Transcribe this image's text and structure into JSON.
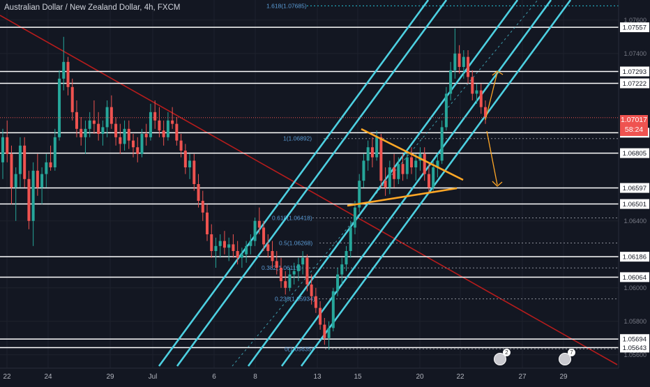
{
  "header": {
    "title": "Australian Dollar / New Zealand Dollar, 4h, FXCM"
  },
  "colors": {
    "background": "#131722",
    "grid": "#1e222d",
    "up": "#26a69a",
    "down": "#ef5350",
    "channel": "#4dd0e1",
    "trendline": "#b71c1c",
    "triangle": "#ffa726",
    "level": "#ffffff"
  },
  "current_price": {
    "value": "1.07017",
    "countdown": "58:24"
  },
  "events": [
    {
      "count": "2"
    },
    {
      "count": "7"
    }
  ],
  "chart_data": {
    "type": "candlestick",
    "symbol": "AUDNZD",
    "timeframe": "4h",
    "ylim": [
      1.0552,
      1.0772
    ],
    "x_tick_labels": [
      "22",
      "24",
      "29",
      "Jul",
      "6",
      "8",
      "13",
      "15",
      "20",
      "22",
      "27",
      "29"
    ],
    "y_tick_labels": [
      "1.07600",
      "1.07400",
      "1.06400",
      "1.06000",
      "1.05800",
      "1.05600"
    ],
    "horizontal_levels": [
      "1.07557",
      "1.07293",
      "1.07222",
      "1.06927",
      "1.06805",
      "1.06597",
      "1.06501",
      "1.06186",
      "1.06064",
      "1.05694",
      "1.05643"
    ],
    "fibonacci_labels": [
      "1.618(1.07685)",
      "1(1.06892)",
      "0.618(1.06418)",
      "0.5(1.06268)",
      "0.382(1.06119)",
      "0.236(1.05934)",
      "0(1.05635)"
    ],
    "candles_ohlc": [
      [
        1.0675,
        1.0695,
        1.0665,
        1.069
      ],
      [
        1.069,
        1.07,
        1.0675,
        1.068
      ],
      [
        1.068,
        1.0685,
        1.065,
        1.066
      ],
      [
        1.066,
        1.0672,
        1.064,
        1.0668
      ],
      [
        1.0668,
        1.069,
        1.066,
        1.0685
      ],
      [
        1.0685,
        1.069,
        1.066,
        1.0665
      ],
      [
        1.0665,
        1.067,
        1.0635,
        1.064
      ],
      [
        1.064,
        1.0675,
        1.0625,
        1.067
      ],
      [
        1.067,
        1.068,
        1.0655,
        1.066
      ],
      [
        1.066,
        1.0672,
        1.065,
        1.0668
      ],
      [
        1.0668,
        1.068,
        1.066,
        1.0675
      ],
      [
        1.0675,
        1.0685,
        1.067,
        1.0672
      ],
      [
        1.0672,
        1.0695,
        1.067,
        1.069
      ],
      [
        1.069,
        1.073,
        1.0688,
        1.0725
      ],
      [
        1.0725,
        1.075,
        1.0718,
        1.0735
      ],
      [
        1.0735,
        1.0738,
        1.0715,
        1.072
      ],
      [
        1.072,
        1.0725,
        1.07,
        1.0705
      ],
      [
        1.0705,
        1.0712,
        1.069,
        1.0695
      ],
      [
        1.0695,
        1.0702,
        1.0685,
        1.069
      ],
      [
        1.069,
        1.07,
        1.068,
        1.0695
      ],
      [
        1.0695,
        1.0705,
        1.069,
        1.07
      ],
      [
        1.07,
        1.0712,
        1.0692,
        1.0698
      ],
      [
        1.0698,
        1.0705,
        1.0688,
        1.0692
      ],
      [
        1.0692,
        1.07,
        1.0685,
        1.0696
      ],
      [
        1.0696,
        1.0712,
        1.069,
        1.0708
      ],
      [
        1.0708,
        1.0715,
        1.0695,
        1.0698
      ],
      [
        1.0698,
        1.0702,
        1.0685,
        1.069
      ],
      [
        1.069,
        1.0698,
        1.068,
        1.0686
      ],
      [
        1.0686,
        1.07,
        1.0682,
        1.0695
      ],
      [
        1.0695,
        1.07,
        1.0683,
        1.0688
      ],
      [
        1.0688,
        1.0692,
        1.0678,
        1.0684
      ],
      [
        1.0684,
        1.069,
        1.0675,
        1.068
      ],
      [
        1.068,
        1.0695,
        1.0678,
        1.0692
      ],
      [
        1.0692,
        1.0698,
        1.0685,
        1.069
      ],
      [
        1.069,
        1.071,
        1.0688,
        1.0705
      ],
      [
        1.0705,
        1.0712,
        1.0695,
        1.07
      ],
      [
        1.07,
        1.0708,
        1.069,
        1.0694
      ],
      [
        1.0694,
        1.07,
        1.0685,
        1.069
      ],
      [
        1.069,
        1.0705,
        1.0688,
        1.07
      ],
      [
        1.07,
        1.0708,
        1.0695,
        1.0698
      ],
      [
        1.0698,
        1.0702,
        1.0685,
        1.0688
      ],
      [
        1.0688,
        1.0692,
        1.0678,
        1.0682
      ],
      [
        1.0682,
        1.0686,
        1.0668,
        1.0672
      ],
      [
        1.0672,
        1.068,
        1.0665,
        1.0676
      ],
      [
        1.0676,
        1.068,
        1.0658,
        1.0662
      ],
      [
        1.0662,
        1.0668,
        1.0648,
        1.0652
      ],
      [
        1.0652,
        1.0658,
        1.064,
        1.0645
      ],
      [
        1.0645,
        1.065,
        1.0628,
        1.0632
      ],
      [
        1.0632,
        1.0638,
        1.0618,
        1.0622
      ],
      [
        1.0622,
        1.063,
        1.0612,
        1.0625
      ],
      [
        1.0625,
        1.0632,
        1.0618,
        1.0628
      ],
      [
        1.0628,
        1.0634,
        1.062,
        1.0624
      ],
      [
        1.0624,
        1.063,
        1.0616,
        1.0626
      ],
      [
        1.0626,
        1.0632,
        1.0618,
        1.0622
      ],
      [
        1.0622,
        1.0628,
        1.0614,
        1.0618
      ],
      [
        1.0618,
        1.0624,
        1.0612,
        1.062
      ],
      [
        1.062,
        1.0628,
        1.0615,
        1.0625
      ],
      [
        1.0625,
        1.0632,
        1.062,
        1.0628
      ],
      [
        1.0628,
        1.0642,
        1.0625,
        1.064
      ],
      [
        1.064,
        1.0648,
        1.0632,
        1.0636
      ],
      [
        1.0636,
        1.064,
        1.0622,
        1.0626
      ],
      [
        1.0626,
        1.0632,
        1.0618,
        1.0622
      ],
      [
        1.0622,
        1.0628,
        1.0612,
        1.0616
      ],
      [
        1.0616,
        1.0622,
        1.0608,
        1.0612
      ],
      [
        1.0612,
        1.0618,
        1.06,
        1.0604
      ],
      [
        1.0604,
        1.061,
        1.0596,
        1.06
      ],
      [
        1.06,
        1.0612,
        1.0598,
        1.0608
      ],
      [
        1.0608,
        1.0615,
        1.0602,
        1.061
      ],
      [
        1.061,
        1.0618,
        1.0604,
        1.0614
      ],
      [
        1.0614,
        1.0622,
        1.0608,
        1.0618
      ],
      [
        1.0618,
        1.062,
        1.0598,
        1.0602
      ],
      [
        1.0602,
        1.0608,
        1.059,
        1.0595
      ],
      [
        1.0595,
        1.06,
        1.0585,
        1.0588
      ],
      [
        1.0588,
        1.0592,
        1.0575,
        1.0578
      ],
      [
        1.0578,
        1.0582,
        1.0566,
        1.057
      ],
      [
        1.057,
        1.058,
        1.0563,
        1.0576
      ],
      [
        1.0576,
        1.06,
        1.0574,
        1.0598
      ],
      [
        1.0598,
        1.0612,
        1.0595,
        1.0608
      ],
      [
        1.0608,
        1.0618,
        1.0602,
        1.0614
      ],
      [
        1.0614,
        1.0625,
        1.061,
        1.0622
      ],
      [
        1.0622,
        1.064,
        1.0618,
        1.0636
      ],
      [
        1.0636,
        1.0652,
        1.0632,
        1.0648
      ],
      [
        1.0648,
        1.0668,
        1.0645,
        1.0664
      ],
      [
        1.0664,
        1.068,
        1.066,
        1.0676
      ],
      [
        1.0676,
        1.0688,
        1.067,
        1.0684
      ],
      [
        1.0684,
        1.069,
        1.0672,
        1.0678
      ],
      [
        1.0678,
        1.0694,
        1.0676,
        1.069
      ],
      [
        1.069,
        1.0692,
        1.066,
        1.0664
      ],
      [
        1.0664,
        1.0672,
        1.0655,
        1.066
      ],
      [
        1.066,
        1.0676,
        1.0656,
        1.0672
      ],
      [
        1.0672,
        1.068,
        1.066,
        1.0665
      ],
      [
        1.0665,
        1.0678,
        1.0662,
        1.0674
      ],
      [
        1.0674,
        1.068,
        1.0664,
        1.0668
      ],
      [
        1.0668,
        1.0682,
        1.0665,
        1.0678
      ],
      [
        1.0678,
        1.0684,
        1.0668,
        1.0672
      ],
      [
        1.0672,
        1.068,
        1.0664,
        1.0676
      ],
      [
        1.0676,
        1.0684,
        1.067,
        1.068
      ],
      [
        1.068,
        1.0684,
        1.0664,
        1.0668
      ],
      [
        1.0668,
        1.0674,
        1.0656,
        1.066
      ],
      [
        1.066,
        1.0676,
        1.0658,
        1.0672
      ],
      [
        1.0672,
        1.068,
        1.0666,
        1.0676
      ],
      [
        1.0676,
        1.07,
        1.0674,
        1.0696
      ],
      [
        1.0696,
        1.072,
        1.0694,
        1.0716
      ],
      [
        1.0716,
        1.0735,
        1.0712,
        1.073
      ],
      [
        1.073,
        1.0755,
        1.0725,
        1.074
      ],
      [
        1.074,
        1.0745,
        1.0728,
        1.0732
      ],
      [
        1.0732,
        1.0742,
        1.0725,
        1.0738
      ],
      [
        1.0738,
        1.0742,
        1.0722,
        1.0726
      ],
      [
        1.0726,
        1.073,
        1.0712,
        1.0716
      ],
      [
        1.0716,
        1.0722,
        1.071,
        1.0718
      ],
      [
        1.0718,
        1.0722,
        1.0704,
        1.0708
      ],
      [
        1.0708,
        1.0712,
        1.0698,
        1.0702
      ]
    ]
  }
}
